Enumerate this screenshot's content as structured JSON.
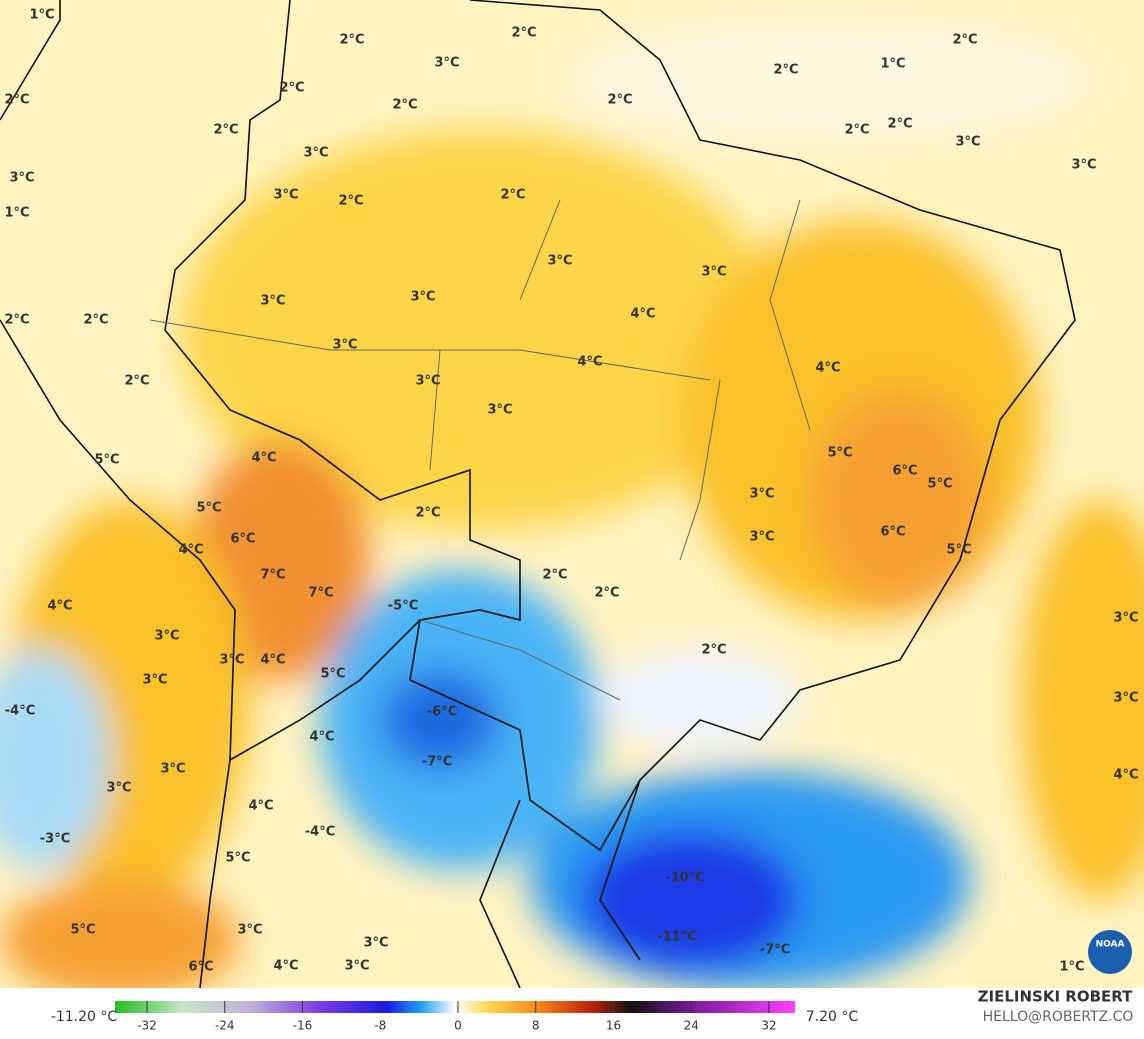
{
  "map": {
    "labels": [
      "1°C",
      "2°C",
      "3°C",
      "2°C",
      "2°C",
      "2°C",
      "1°C",
      "2°C",
      "2°C",
      "2°C",
      "2°C",
      "2°C",
      "2°C",
      "2°C",
      "3°C",
      "3°C",
      "3°C",
      "3°C",
      "3°C",
      "2°C",
      "2°C",
      "1°C",
      "3°C",
      "3°C",
      "3°C",
      "3°C",
      "2°C",
      "2°C",
      "4°C",
      "3°C",
      "4°C",
      "4°C",
      "2°C",
      "3°C",
      "3°C",
      "5°C",
      "6°C",
      "5°C",
      "5°C",
      "4°C",
      "3°C",
      "5°C",
      "2°C",
      "6°C",
      "3°C",
      "6°C",
      "4°C",
      "5°C",
      "7°C",
      "2°C",
      "7°C",
      "2°C",
      "-5°C",
      "4°C",
      "3°C",
      "3°C",
      "3°C",
      "4°C",
      "2°C",
      "3°C",
      "5°C",
      "-4°C",
      "-6°C",
      "3°C",
      "4°C",
      "-7°C",
      "3°C",
      "3°C",
      "4°C",
      "4°C",
      "-4°C",
      "-3°C",
      "5°C",
      "-10°C",
      "-11°C",
      "-7°C",
      "5°C",
      "3°C",
      "3°C",
      "6°C",
      "4°C",
      "3°C",
      "1°C"
    ]
  },
  "colorbar": {
    "min_label": "-11.20 °C",
    "max_label": "7.20 °C",
    "ticks": [
      "-32",
      "-24",
      "-16",
      "-8",
      "0",
      "8",
      "16",
      "24",
      "32"
    ]
  },
  "credits": {
    "author": "ZIELINSKI ROBERT",
    "contact": "HELLO@ROBERTZ.CO",
    "logo": "NOAA"
  }
}
